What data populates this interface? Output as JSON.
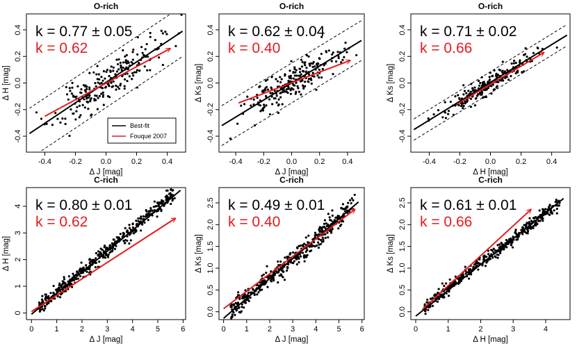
{
  "colors": {
    "bestfit": "#000000",
    "fouque": "#e41a1c",
    "points": "#000000"
  },
  "legend": {
    "bestfit": "Best-fit",
    "fouque": "Fouque 2007"
  },
  "chart_data": [
    {
      "type": "scatter",
      "title": "O-rich",
      "xlabel": "Δ J [mag]",
      "ylabel": "Δ H [mag]",
      "xlim": [
        -0.52,
        0.52
      ],
      "ylim": [
        -0.52,
        0.52
      ],
      "xticks": [
        "-0.4",
        "-0.2",
        "0.0",
        "0.2",
        "0.4"
      ],
      "yticks": [
        "-0.4",
        "-0.2",
        "0.0",
        "0.2",
        "0.4"
      ],
      "k_fit": "k = 0.77 ± 0.05",
      "k_ref": "k = 0.62",
      "bestfit": [
        [
          -0.5,
          -0.38
        ],
        [
          0.5,
          0.39
        ]
      ],
      "band_offset": 0.19,
      "fouque_arrow": [
        [
          -0.4,
          -0.25
        ],
        [
          0.42,
          0.26
        ]
      ],
      "legend_shown": true,
      "points": {
        "n": 230,
        "xc": 0.0,
        "xs": 0.17,
        "slope": 0.77,
        "scatter": 0.075,
        "seed": 11
      }
    },
    {
      "type": "scatter",
      "title": "O-rich",
      "xlabel": "Δ J [mag]",
      "ylabel": "Δ Ks [mag]",
      "xlim": [
        -0.52,
        0.52
      ],
      "ylim": [
        -0.52,
        0.52
      ],
      "xticks": [
        "-0.4",
        "-0.2",
        "0.0",
        "0.2",
        "0.4"
      ],
      "yticks": [
        "-0.4",
        "-0.2",
        "0.0",
        "0.2",
        "0.4"
      ],
      "k_fit": "k = 0.62 ± 0.04",
      "k_ref": "k = 0.40",
      "bestfit": [
        [
          -0.5,
          -0.32
        ],
        [
          0.5,
          0.32
        ]
      ],
      "band_offset": 0.15,
      "fouque_arrow": [
        [
          -0.38,
          -0.15
        ],
        [
          0.42,
          0.17
        ]
      ],
      "legend_shown": false,
      "points": {
        "n": 230,
        "xc": 0.0,
        "xs": 0.17,
        "slope": 0.62,
        "scatter": 0.065,
        "seed": 23
      }
    },
    {
      "type": "scatter",
      "title": "O-rich",
      "xlabel": "Δ H [mag]",
      "ylabel": "Δ Ks [mag]",
      "xlim": [
        -0.52,
        0.52
      ],
      "ylim": [
        -0.52,
        0.52
      ],
      "xticks": [
        "-0.4",
        "-0.2",
        "0.0",
        "0.2",
        "0.4"
      ],
      "yticks": [
        "-0.4",
        "-0.2",
        "0.0",
        "0.2",
        "0.4"
      ],
      "k_fit": "k = 0.71 ± 0.02",
      "k_ref": "k = 0.66",
      "bestfit": [
        [
          -0.5,
          -0.35
        ],
        [
          0.5,
          0.36
        ]
      ],
      "band_offset": 0.08,
      "fouque_arrow": [
        [
          -0.22,
          -0.16
        ],
        [
          0.35,
          0.23
        ]
      ],
      "legend_shown": false,
      "points": {
        "n": 230,
        "xc": 0.0,
        "xs": 0.15,
        "slope": 0.71,
        "scatter": 0.035,
        "seed": 37
      }
    },
    {
      "type": "scatter",
      "title": "C-rich",
      "xlabel": "Δ J [mag]",
      "ylabel": "Δ H [mag]",
      "xlim": [
        -0.2,
        6.1
      ],
      "ylim": [
        -0.25,
        4.7
      ],
      "xticks": [
        "0",
        "1",
        "2",
        "3",
        "4",
        "5",
        "6"
      ],
      "yticks": [
        "0",
        "1",
        "2",
        "3",
        "4"
      ],
      "k_fit": "k = 0.80 ± 0.01",
      "k_ref": "k = 0.62",
      "bestfit": [
        [
          0.0,
          -0.05
        ],
        [
          5.9,
          4.6
        ]
      ],
      "fouque_arrow": [
        [
          0.0,
          0.05
        ],
        [
          5.7,
          3.55
        ]
      ],
      "legend_shown": false,
      "points": {
        "n": 420,
        "xmin": 0.3,
        "xmax": 5.7,
        "slope": 0.8,
        "icpt": -0.05,
        "scatter": 0.14,
        "seed": 53
      }
    },
    {
      "type": "scatter",
      "title": "C-rich",
      "xlabel": "Δ J [mag]",
      "ylabel": "Δ Ks [mag]",
      "xlim": [
        -0.2,
        6.1
      ],
      "ylim": [
        -0.18,
        2.85
      ],
      "xticks": [
        "0",
        "1",
        "2",
        "3",
        "4",
        "5",
        "6"
      ],
      "yticks": [
        "0.0",
        "0.5",
        "1.0",
        "1.5",
        "2.0",
        "2.5"
      ],
      "k_fit": "k = 0.49 ± 0.01",
      "k_ref": "k = 0.40",
      "bestfit": [
        [
          0.0,
          -0.15
        ],
        [
          5.85,
          2.52
        ]
      ],
      "fouque_arrow": [
        [
          0.0,
          0.07
        ],
        [
          5.7,
          2.35
        ]
      ],
      "legend_shown": false,
      "points": {
        "n": 420,
        "xmin": 0.3,
        "xmax": 5.7,
        "slope": 0.46,
        "icpt": -0.15,
        "scatter": 0.11,
        "seed": 71
      }
    },
    {
      "type": "scatter",
      "title": "C-rich",
      "xlabel": "Δ H [mag]",
      "ylabel": "Δ Ks [mag]",
      "xlim": [
        -0.15,
        4.75
      ],
      "ylim": [
        -0.18,
        2.85
      ],
      "xticks": [
        "0",
        "1",
        "2",
        "3",
        "4"
      ],
      "yticks": [
        "0.0",
        "0.5",
        "1.0",
        "1.5",
        "2.0",
        "2.5"
      ],
      "k_fit": "k = 0.61 ± 0.01",
      "k_ref": "k = 0.66",
      "bestfit": [
        [
          0.0,
          -0.1
        ],
        [
          4.55,
          2.6
        ]
      ],
      "fouque_arrow": [
        [
          0.2,
          0.05
        ],
        [
          3.55,
          2.35
        ]
      ],
      "legend_shown": false,
      "points": {
        "n": 420,
        "xmin": 0.25,
        "xmax": 4.45,
        "slope": 0.6,
        "icpt": -0.1,
        "scatter": 0.07,
        "seed": 89
      }
    }
  ]
}
